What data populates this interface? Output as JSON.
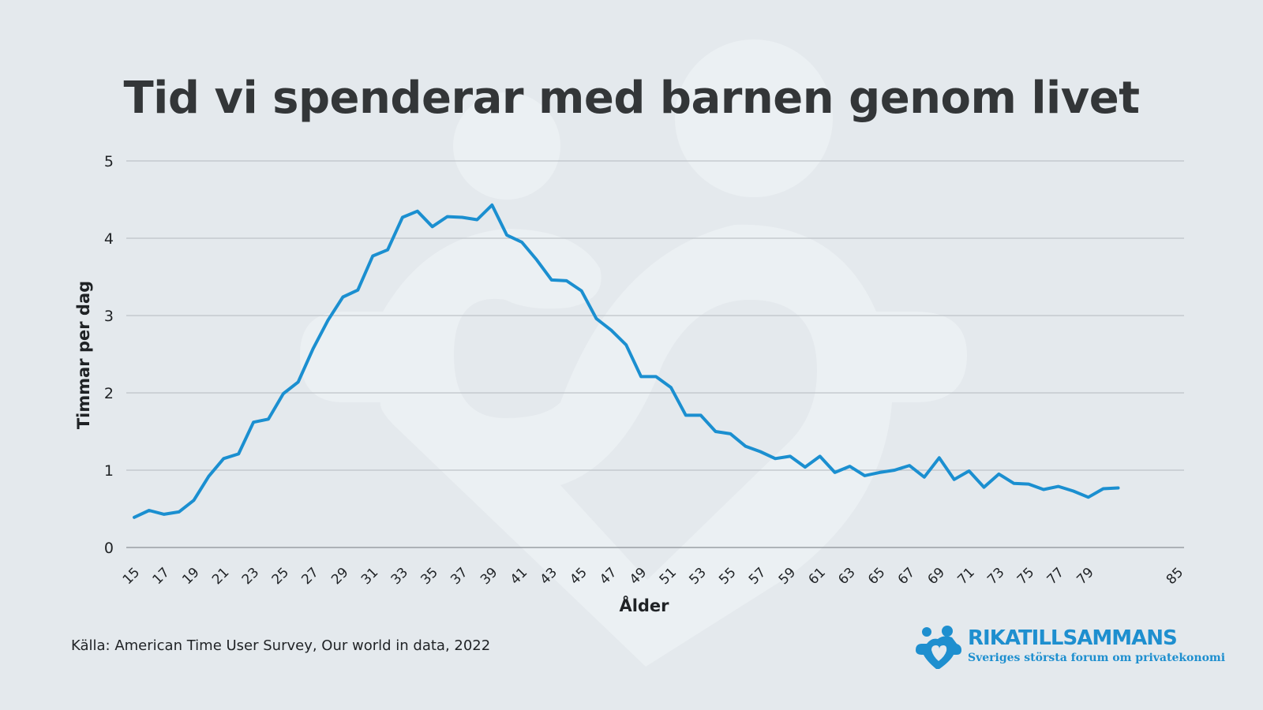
{
  "chart_data": {
    "type": "line",
    "title": "Tid vi spenderar med barnen genom livet",
    "xlabel": "Ålder",
    "ylabel": "Timmar per dag",
    "xlim": [
      15,
      85
    ],
    "ylim": [
      0,
      5
    ],
    "yticks": [
      0,
      1,
      2,
      3,
      4,
      5
    ],
    "xticks": [
      15,
      17,
      19,
      21,
      23,
      25,
      27,
      29,
      31,
      33,
      35,
      37,
      39,
      41,
      43,
      45,
      47,
      49,
      51,
      53,
      55,
      57,
      59,
      61,
      63,
      65,
      67,
      69,
      71,
      73,
      75,
      77,
      79,
      85
    ],
    "grid": true,
    "line_color": "#1b8fd0",
    "series": [
      {
        "x": [
          15,
          16,
          17,
          18,
          19,
          20,
          21,
          22,
          23,
          24,
          25,
          26,
          27,
          28,
          29,
          30,
          31,
          32,
          33,
          34,
          35,
          36,
          37,
          38,
          39,
          40,
          41,
          42,
          43,
          44,
          45,
          46,
          47,
          48,
          49,
          50,
          51,
          52,
          53,
          54,
          55,
          56,
          57,
          58,
          59,
          60,
          61,
          62,
          63,
          64,
          65,
          66,
          67,
          68,
          69,
          70,
          71,
          72,
          73,
          74,
          75,
          76,
          77,
          78,
          79,
          80,
          81
        ],
        "values": [
          0.39,
          0.48,
          0.43,
          0.46,
          0.61,
          0.92,
          1.15,
          1.21,
          1.62,
          1.66,
          1.99,
          2.14,
          2.57,
          2.94,
          3.24,
          3.33,
          3.77,
          3.85,
          4.27,
          4.35,
          4.15,
          4.28,
          4.27,
          4.24,
          4.43,
          4.04,
          3.95,
          3.72,
          3.46,
          3.45,
          3.32,
          2.96,
          2.81,
          2.62,
          2.21,
          2.21,
          2.07,
          1.71,
          1.71,
          1.5,
          1.47,
          1.31,
          1.24,
          1.15,
          1.18,
          1.04,
          1.18,
          0.97,
          1.05,
          0.93,
          0.97,
          1.0,
          1.06,
          0.91,
          1.16,
          0.88,
          0.99,
          0.78,
          0.95,
          0.83,
          0.82,
          0.75,
          0.79,
          0.73,
          0.65,
          0.76,
          0.77
        ]
      }
    ]
  },
  "footer": {
    "source": "Källa: American Time User Survey, Our world in data, 2022"
  },
  "brand": {
    "name": "RIKATILLSAMMANS",
    "tagline": "Sveriges största forum om privatekonomi",
    "color": "#1e8fcf"
  }
}
